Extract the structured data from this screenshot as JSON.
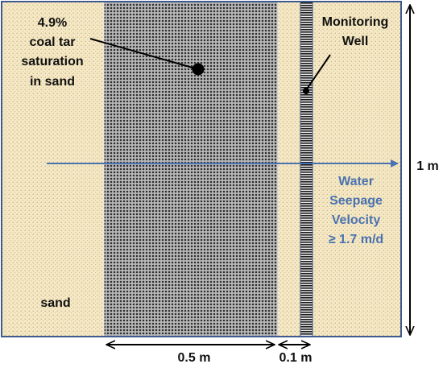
{
  "labels": {
    "tar_line1": "4.9%",
    "tar_line2": "coal tar",
    "tar_line3": "saturation",
    "tar_line4": "in sand",
    "well_line1": "Monitoring",
    "well_line2": "Well",
    "flow_line1": "Water",
    "flow_line2": "Seepage",
    "flow_line3": "Velocity",
    "flow_line4": "≥ 1.7 m/d",
    "sand": "sand",
    "height": "1 m",
    "tar_width": "0.5 m",
    "gap_width": "0.1 m"
  },
  "colors": {
    "sand": "#f5e8c4",
    "sand_dots": "#b29a6a",
    "tar_zone": "#a9a9a9",
    "tar_dots": "#333333",
    "well_stripes": "#1a1a1a",
    "frame": "#3f5a8c",
    "flow_arrow": "#4a72b0",
    "flow_text": "#4a72b0",
    "text": "#111111"
  }
}
